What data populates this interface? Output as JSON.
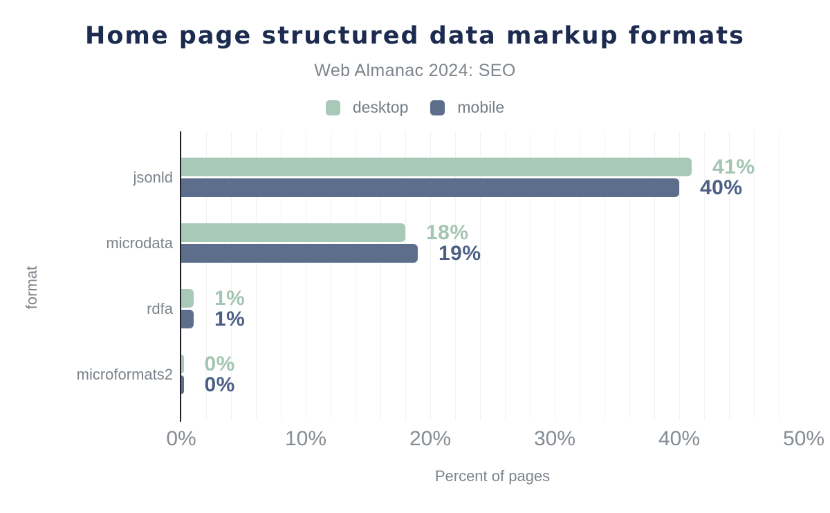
{
  "header": {
    "title": "Home page structured data markup formats",
    "subtitle": "Web Almanac 2024: SEO"
  },
  "legend": {
    "items": [
      {
        "name": "desktop",
        "label": "desktop",
        "color": "#a9c9b8"
      },
      {
        "name": "mobile",
        "label": "mobile",
        "color": "#5d6e8c"
      }
    ]
  },
  "chart_data": {
    "type": "bar",
    "orientation": "horizontal",
    "title": "Home page structured data markup formats",
    "subtitle": "Web Almanac 2024: SEO",
    "xlabel": "Percent of pages",
    "ylabel": "format",
    "xlim": [
      0,
      50
    ],
    "grid": "vertical gridlines every 2%, legend at top center",
    "categories": [
      "jsonld",
      "microdata",
      "rdfa",
      "microformats2"
    ],
    "series": [
      {
        "name": "desktop",
        "color": "#a9c9b8",
        "label_color": "#a3c5b2",
        "values": [
          41,
          18,
          1,
          0
        ],
        "value_labels": [
          "41%",
          "18%",
          "1%",
          "0%"
        ]
      },
      {
        "name": "mobile",
        "color": "#5d6e8c",
        "label_color": "#4d6084",
        "values": [
          40,
          19,
          1,
          0
        ],
        "value_labels": [
          "40%",
          "19%",
          "1%",
          "0%"
        ]
      }
    ],
    "xticks": [
      {
        "value": 0,
        "label": "0%"
      },
      {
        "value": 10,
        "label": "10%"
      },
      {
        "value": 20,
        "label": "20%"
      },
      {
        "value": 30,
        "label": "30%"
      },
      {
        "value": 40,
        "label": "40%"
      },
      {
        "value": 50,
        "label": "50%"
      }
    ],
    "colors": {
      "title": "#1c2b4f",
      "secondary_text": "#7d848c",
      "gridline": "#f1f1f3",
      "axis_line": "#1f2328"
    }
  }
}
